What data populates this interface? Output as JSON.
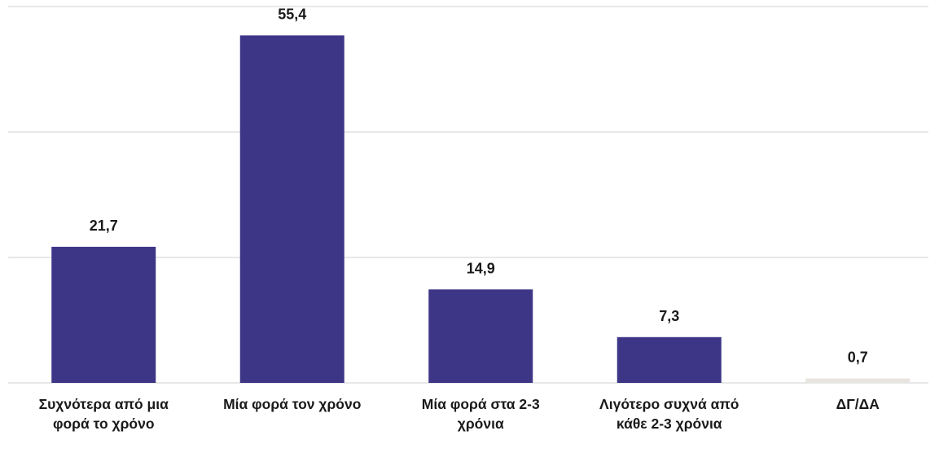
{
  "chart_data": {
    "type": "bar",
    "categories": [
      "Συχνότερα από μια φορά το χρόνο",
      "Μία φορά τον χρόνο",
      "Μία φορά στα 2-3 χρόνια",
      "Λιγότερο συχνά από κάθε 2-3 χρόνια",
      "ΔΓ/ΔΑ"
    ],
    "values": [
      21.7,
      55.4,
      14.9,
      7.3,
      0.7
    ],
    "value_labels": [
      "21,7",
      "55,4",
      "14,9",
      "7,3",
      "0,7"
    ],
    "colors": [
      "#3d3687",
      "#3d3687",
      "#3d3687",
      "#3d3687",
      "#e8e4e0"
    ],
    "ylim": [
      0,
      60
    ],
    "yticks": [
      0,
      20,
      40,
      60
    ],
    "grid": true
  }
}
